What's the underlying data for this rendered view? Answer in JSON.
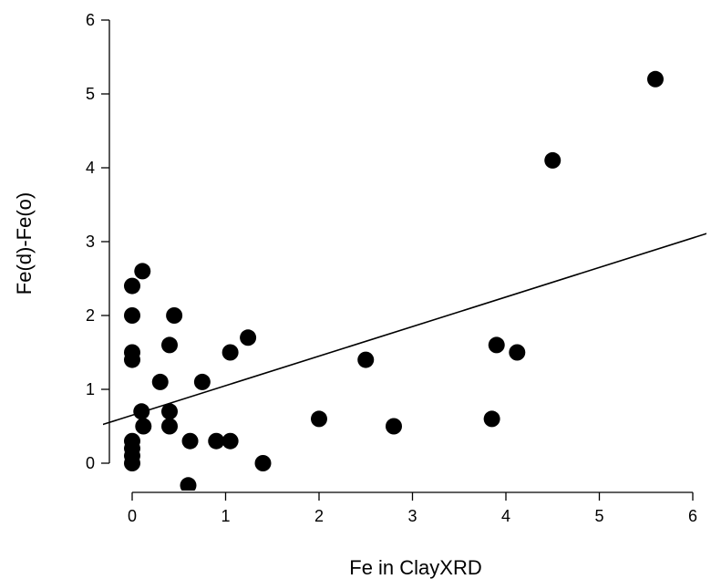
{
  "chart_data": {
    "type": "scatter",
    "title": "",
    "xlabel": "Fe in ClayXRD",
    "ylabel": "Fe(d)-Fe(o)",
    "xlim": [
      -0.1,
      6.05
    ],
    "ylim": [
      -0.25,
      6
    ],
    "xticks": [
      0,
      1,
      2,
      3,
      4,
      5,
      6
    ],
    "yticks": [
      0,
      1,
      2,
      3,
      4,
      5,
      6
    ],
    "grid": false,
    "legend": "none",
    "point_color": "#000000",
    "series": [
      {
        "points": [
          [
            0.0,
            0.0
          ],
          [
            0.0,
            0.1
          ],
          [
            0.0,
            0.2
          ],
          [
            0.0,
            0.3
          ],
          [
            0.0,
            1.4
          ],
          [
            0.0,
            1.5
          ],
          [
            0.0,
            2.0
          ],
          [
            0.0,
            2.4
          ],
          [
            0.1,
            0.7
          ],
          [
            0.12,
            0.5
          ],
          [
            0.11,
            2.6
          ],
          [
            0.3,
            1.1
          ],
          [
            0.4,
            0.5
          ],
          [
            0.4,
            0.7
          ],
          [
            0.4,
            1.6
          ],
          [
            0.45,
            2.0
          ],
          [
            0.6,
            -0.3
          ],
          [
            0.62,
            0.3
          ],
          [
            0.75,
            1.1
          ],
          [
            0.9,
            0.3
          ],
          [
            1.05,
            0.3
          ],
          [
            1.05,
            1.5
          ],
          [
            1.24,
            1.7
          ],
          [
            1.4,
            0.0
          ],
          [
            2.0,
            0.6
          ],
          [
            2.5,
            1.4
          ],
          [
            2.8,
            0.5
          ],
          [
            3.85,
            0.6
          ],
          [
            3.9,
            1.6
          ],
          [
            4.12,
            1.5
          ],
          [
            4.5,
            4.1
          ],
          [
            5.6,
            5.2
          ]
        ]
      }
    ],
    "fit_line": {
      "intercept": 0.65,
      "slope": 0.4
    }
  }
}
